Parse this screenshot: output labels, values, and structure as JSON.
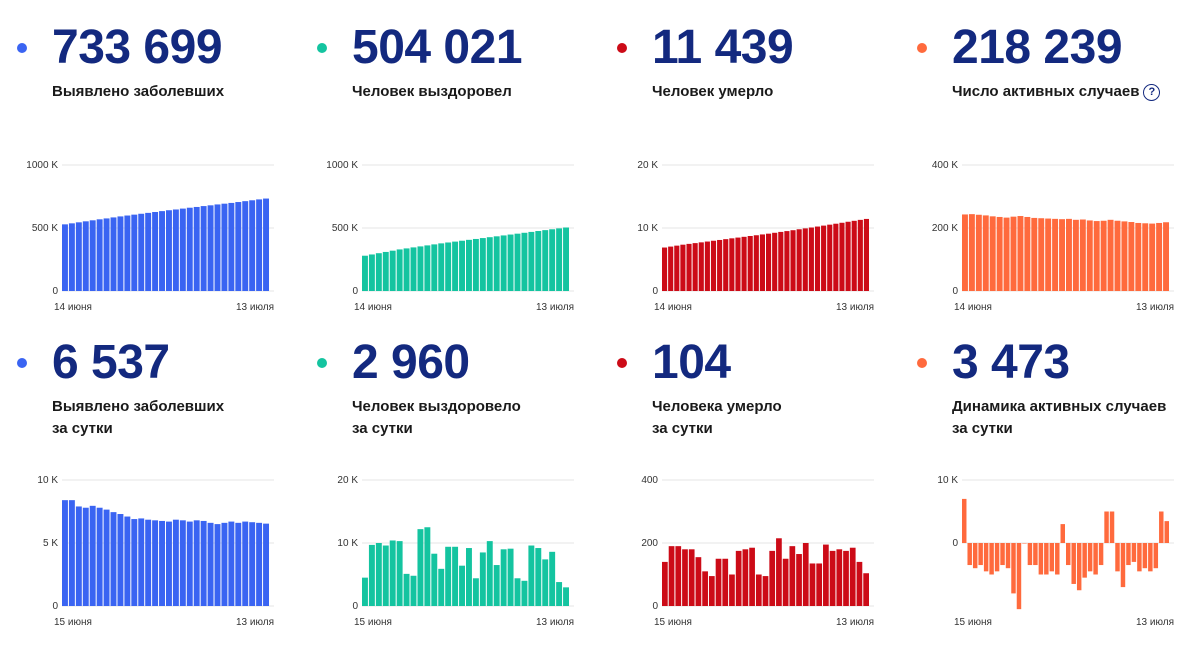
{
  "cards": [
    {
      "color": "#3a64f2",
      "value": "733 699",
      "label": "Выявлено заболевших",
      "label2": ""
    },
    {
      "color": "#14c4a0",
      "value": "504 021",
      "label": "Человек выздоровел",
      "label2": ""
    },
    {
      "color": "#cc0b17",
      "value": "11 439",
      "label": "Человек умерло",
      "label2": ""
    },
    {
      "color": "#ff6a3d",
      "value": "218 239",
      "label": "Число активных случаев",
      "label2": "",
      "help_icon": "?"
    },
    {
      "color": "#3a64f2",
      "value": "6 537",
      "label": "Выявлено заболевших",
      "label2": "за сутки"
    },
    {
      "color": "#14c4a0",
      "value": "2 960",
      "label": "Человек выздоровело",
      "label2": "за сутки"
    },
    {
      "color": "#cc0b17",
      "value": "104",
      "label": "Человека умерло",
      "label2": "за сутки"
    },
    {
      "color": "#ff6a3d",
      "value": "3 473",
      "label": "Динамика активных случаев",
      "label2": "за сутки"
    }
  ],
  "chart_data": [
    {
      "type": "bar",
      "color": "#3a64f2",
      "ylim": [
        0,
        1000000
      ],
      "y_ticks": [
        {
          "value": 0,
          "label": "0"
        },
        {
          "value": 500000,
          "label": "500 K"
        },
        {
          "value": 1000000,
          "label": "1000 K"
        }
      ],
      "x_start_label": "14 июня",
      "x_end_label": "13 июля",
      "values": [
        529000,
        537000,
        545000,
        553000,
        561000,
        569000,
        576000,
        584000,
        592000,
        599000,
        606000,
        613000,
        620000,
        627000,
        634000,
        641000,
        647000,
        654000,
        661000,
        667000,
        674000,
        680000,
        687000,
        693000,
        699000,
        706000,
        713000,
        720000,
        727000,
        733699
      ]
    },
    {
      "type": "bar",
      "color": "#14c4a0",
      "ylim": [
        0,
        1000000
      ],
      "y_ticks": [
        {
          "value": 0,
          "label": "0"
        },
        {
          "value": 500000,
          "label": "500 K"
        },
        {
          "value": 1000000,
          "label": "1000 K"
        }
      ],
      "x_start_label": "14 июня",
      "x_end_label": "13 июля",
      "values": [
        280000,
        290000,
        300000,
        310000,
        320000,
        330000,
        338000,
        346000,
        354000,
        362000,
        370000,
        378000,
        385000,
        392000,
        399000,
        406000,
        413000,
        420000,
        427000,
        434000,
        441000,
        448000,
        455000,
        462000,
        469000,
        476000,
        483000,
        490000,
        497000,
        504021
      ]
    },
    {
      "type": "bar",
      "color": "#cc0b17",
      "ylim": [
        0,
        20000
      ],
      "y_ticks": [
        {
          "value": 0,
          "label": "0"
        },
        {
          "value": 10000,
          "label": "10 K"
        },
        {
          "value": 20000,
          "label": "20 K"
        }
      ],
      "x_start_label": "14 июня",
      "x_end_label": "13 июля",
      "values": [
        6900,
        7050,
        7200,
        7350,
        7480,
        7600,
        7720,
        7850,
        7980,
        8100,
        8230,
        8360,
        8480,
        8600,
        8730,
        8850,
        8980,
        9100,
        9240,
        9380,
        9510,
        9650,
        9800,
        9940,
        10080,
        10230,
        10380,
        10530,
        10680,
        10830,
        10990,
        11140,
        11290,
        11439
      ]
    },
    {
      "type": "bar",
      "color": "#ff6a3d",
      "ylim": [
        0,
        400000
      ],
      "y_ticks": [
        {
          "value": 0,
          "label": "0"
        },
        {
          "value": 200000,
          "label": "200 K"
        },
        {
          "value": 400000,
          "label": "400 K"
        }
      ],
      "x_start_label": "14 июня",
      "x_end_label": "13 июля",
      "values": [
        243000,
        244000,
        242000,
        240000,
        237000,
        235000,
        233000,
        236000,
        238000,
        235000,
        232000,
        231000,
        230000,
        229000,
        228000,
        229000,
        226000,
        227000,
        224000,
        222000,
        223000,
        226000,
        223000,
        221000,
        219000,
        216000,
        215000,
        214000,
        216000,
        218239
      ]
    },
    {
      "type": "bar",
      "color": "#3a64f2",
      "ylim": [
        0,
        10000
      ],
      "y_ticks": [
        {
          "value": 0,
          "label": "0"
        },
        {
          "value": 5000,
          "label": "5 K"
        },
        {
          "value": 10000,
          "label": "10 K"
        }
      ],
      "x_start_label": "15 июня",
      "x_end_label": "13 июля",
      "values": [
        8400,
        8400,
        7900,
        7800,
        7950,
        7800,
        7650,
        7450,
        7300,
        7100,
        6900,
        6950,
        6850,
        6800,
        6750,
        6700,
        6850,
        6800,
        6700,
        6800,
        6750,
        6600,
        6500,
        6600,
        6700,
        6600,
        6700,
        6650,
        6600,
        6537
      ]
    },
    {
      "type": "bar",
      "color": "#14c4a0",
      "ylim": [
        0,
        20000
      ],
      "y_ticks": [
        {
          "value": 0,
          "label": "0"
        },
        {
          "value": 10000,
          "label": "10 K"
        },
        {
          "value": 20000,
          "label": "20 K"
        }
      ],
      "x_start_label": "15 июня",
      "x_end_label": "13 июля",
      "values": [
        4500,
        9700,
        10000,
        9600,
        10400,
        10300,
        5100,
        4800,
        12200,
        12500,
        8300,
        5900,
        9400,
        9400,
        6400,
        9200,
        4400,
        8500,
        10300,
        6500,
        9000,
        9100,
        4400,
        4000,
        9600,
        9200,
        7400,
        8600,
        3800,
        2960
      ]
    },
    {
      "type": "bar",
      "color": "#cc0b17",
      "ylim": [
        0,
        400
      ],
      "y_ticks": [
        {
          "value": 0,
          "label": "0"
        },
        {
          "value": 200,
          "label": "200"
        },
        {
          "value": 400,
          "label": "400"
        }
      ],
      "x_start_label": "15 июня",
      "x_end_label": "13 июля",
      "values": [
        140,
        190,
        190,
        180,
        180,
        155,
        110,
        95,
        150,
        150,
        100,
        175,
        180,
        185,
        100,
        95,
        175,
        215,
        150,
        190,
        165,
        200,
        135,
        135,
        195,
        175,
        180,
        175,
        185,
        140,
        104
      ]
    },
    {
      "type": "bar",
      "color": "#ff6a3d",
      "ylim": [
        -10000,
        10000
      ],
      "y_ticks": [
        {
          "value": 0,
          "label": "0"
        },
        {
          "value": 10000,
          "label": "10 K"
        }
      ],
      "x_start_label": "15 июня",
      "x_end_label": "13 июля",
      "values": [
        7000,
        -3500,
        -4000,
        -3500,
        -4500,
        -5000,
        -4500,
        -3500,
        -4000,
        -8000,
        -10500,
        0,
        -3500,
        -3500,
        -5000,
        -5000,
        -4500,
        -5000,
        3000,
        -3500,
        -6500,
        -7500,
        -5500,
        -4500,
        -5000,
        -3500,
        5000,
        5000,
        -4500,
        -7000,
        -3500,
        -3000,
        -4500,
        -4000,
        -4500,
        -4000,
        5000,
        3473
      ]
    }
  ]
}
